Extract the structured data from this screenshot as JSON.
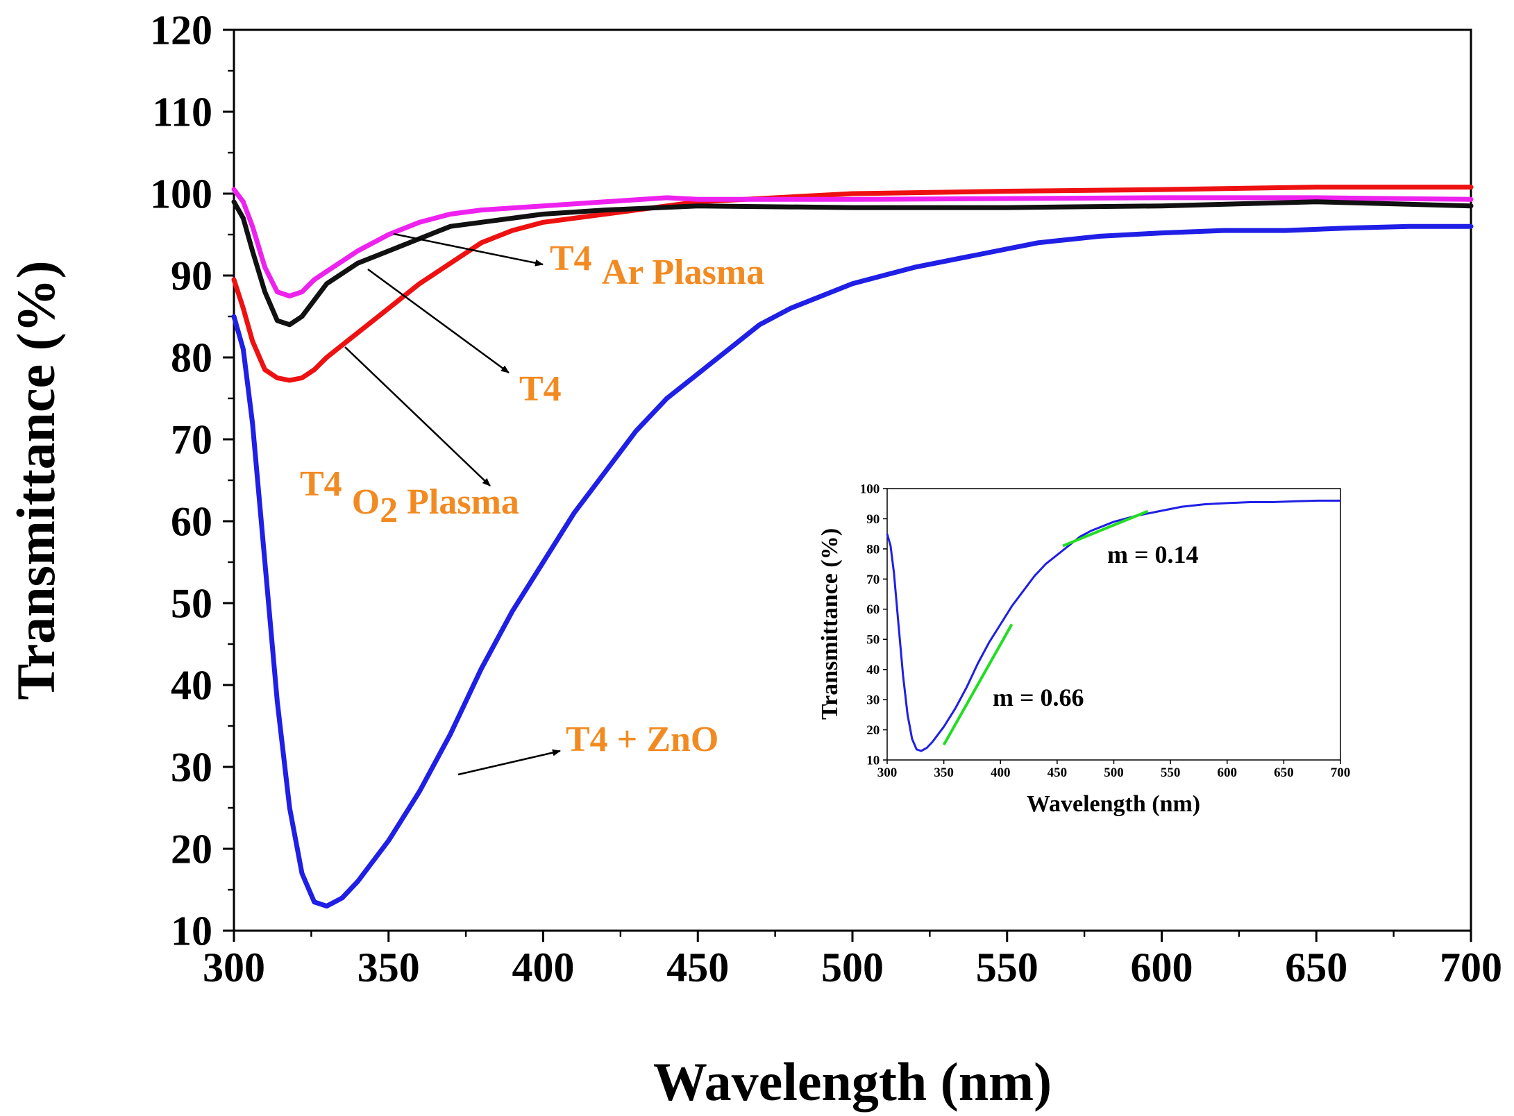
{
  "chart_data": {
    "type": "line",
    "xlabel": "Wavelength (nm)",
    "ylabel": "Transmittance (%)",
    "xlim": [
      300,
      700
    ],
    "ylim": [
      10,
      120
    ],
    "xticks": [
      300,
      350,
      400,
      450,
      500,
      550,
      600,
      650,
      700
    ],
    "yticks": [
      10,
      20,
      30,
      40,
      50,
      60,
      70,
      80,
      90,
      100,
      110,
      120
    ],
    "series": [
      {
        "name": "T4 + ZnO",
        "color": "#1f1fe6",
        "x": [
          300,
          303,
          306,
          310,
          314,
          318,
          322,
          326,
          330,
          335,
          340,
          350,
          360,
          370,
          380,
          390,
          400,
          410,
          420,
          430,
          440,
          450,
          460,
          470,
          480,
          490,
          500,
          520,
          540,
          560,
          580,
          600,
          620,
          640,
          660,
          680,
          700
        ],
        "y": [
          85,
          81,
          72,
          55,
          38,
          25,
          17,
          13.5,
          13,
          14,
          16,
          21,
          27,
          34,
          42,
          49,
          55,
          61,
          66,
          71,
          75,
          78,
          81,
          84,
          86,
          87.5,
          89,
          91,
          92.5,
          94,
          94.8,
          95.2,
          95.5,
          95.5,
          95.8,
          96,
          96
        ]
      },
      {
        "name": "T4",
        "color": "#111111",
        "x": [
          300,
          303,
          306,
          310,
          314,
          318,
          322,
          326,
          330,
          340,
          350,
          360,
          370,
          380,
          400,
          420,
          450,
          500,
          550,
          600,
          650,
          700
        ],
        "y": [
          99,
          97,
          93,
          88,
          84.5,
          84,
          85,
          87,
          89,
          91.5,
          93,
          94.5,
          96,
          96.5,
          97.5,
          98,
          98.5,
          98.3,
          98.3,
          98.5,
          99,
          98.5
        ]
      },
      {
        "name": "T4 Ar Plasma",
        "color": "#ee22ee",
        "x": [
          300,
          303,
          306,
          310,
          314,
          318,
          322,
          326,
          330,
          340,
          350,
          360,
          370,
          380,
          400,
          420,
          440,
          450,
          500,
          550,
          600,
          650,
          700
        ],
        "y": [
          100.5,
          99,
          96,
          91,
          88,
          87.5,
          88,
          89.5,
          90.5,
          93,
          95,
          96.5,
          97.5,
          98,
          98.5,
          99,
          99.5,
          99.3,
          99.3,
          99.4,
          99.5,
          99.5,
          99.3
        ]
      },
      {
        "name": "T4 O2 Plasma",
        "color": "#ee1111",
        "x": [
          300,
          303,
          306,
          310,
          314,
          318,
          322,
          326,
          330,
          340,
          350,
          360,
          370,
          380,
          390,
          400,
          420,
          450,
          500,
          550,
          600,
          650,
          700
        ],
        "y": [
          89.5,
          86,
          82,
          78.5,
          77.5,
          77.2,
          77.5,
          78.5,
          80,
          83,
          86,
          89,
          91.5,
          94,
          95.5,
          96.5,
          97.5,
          99,
          100,
          100.3,
          100.5,
          100.8,
          100.8
        ]
      }
    ],
    "annotations": [
      {
        "label": "T4",
        "sub": "Ar Plasma",
        "series": "T4 Ar Plasma"
      },
      {
        "label": "T4",
        "sub": "",
        "series": "T4"
      },
      {
        "label": "T4",
        "sub_main": "O",
        "sub_num": "2",
        "sub_rest": " Plasma",
        "series": "T4 O2 Plasma"
      },
      {
        "label": "T4 + ZnO",
        "series": "T4 + ZnO"
      }
    ],
    "inset": {
      "type": "line",
      "xlabel": "Wavelength (nm)",
      "ylabel": "Transmittance (%)",
      "xlim": [
        300,
        700
      ],
      "ylim": [
        10,
        100
      ],
      "xticks": [
        300,
        350,
        400,
        450,
        500,
        550,
        600,
        650,
        700
      ],
      "yticks": [
        10,
        20,
        30,
        40,
        50,
        60,
        70,
        80,
        90,
        100
      ],
      "series_ref": "T4 + ZnO",
      "fits": [
        {
          "label": "m = 0.66",
          "x": [
            350,
            410
          ],
          "y": [
            15,
            55
          ],
          "color": "#22dd22"
        },
        {
          "label": "m = 0.14",
          "x": [
            455,
            530
          ],
          "y": [
            81,
            92.5
          ],
          "color": "#22dd22"
        }
      ]
    }
  }
}
